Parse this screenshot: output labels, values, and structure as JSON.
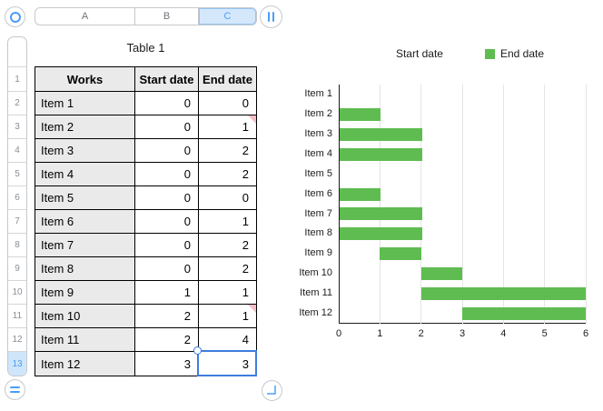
{
  "chrome": {
    "column_bar": {
      "letters": [
        "A",
        "B",
        "C"
      ],
      "active": "C"
    },
    "row_bar": {
      "numbers": [
        "1",
        "2",
        "3",
        "4",
        "5",
        "6",
        "7",
        "8",
        "9",
        "10",
        "11",
        "12",
        "13"
      ],
      "active": "13"
    }
  },
  "table": {
    "title": "Table 1",
    "headers": [
      "Works",
      "Start date",
      "End date"
    ],
    "rows": [
      {
        "works": "Item 1",
        "start": "0",
        "end": "0",
        "comment": false
      },
      {
        "works": "Item 2",
        "start": "0",
        "end": "1",
        "comment": true
      },
      {
        "works": "Item 3",
        "start": "0",
        "end": "2",
        "comment": false
      },
      {
        "works": "Item 4",
        "start": "0",
        "end": "2",
        "comment": false
      },
      {
        "works": "Item 5",
        "start": "0",
        "end": "0",
        "comment": false
      },
      {
        "works": "Item 6",
        "start": "0",
        "end": "1",
        "comment": false
      },
      {
        "works": "Item 7",
        "start": "0",
        "end": "2",
        "comment": false
      },
      {
        "works": "Item 8",
        "start": "0",
        "end": "2",
        "comment": false
      },
      {
        "works": "Item 9",
        "start": "1",
        "end": "1",
        "comment": false
      },
      {
        "works": "Item 10",
        "start": "2",
        "end": "1",
        "comment": true
      },
      {
        "works": "Item 11",
        "start": "2",
        "end": "4",
        "comment": false
      },
      {
        "works": "Item 12",
        "start": "3",
        "end": "3",
        "comment": false
      }
    ],
    "selected_cell": {
      "column": "C",
      "row": "13",
      "value": "3"
    }
  },
  "chart_data": {
    "type": "bar",
    "orientation": "horizontal",
    "stacked": true,
    "categories": [
      "Item 1",
      "Item 2",
      "Item 3",
      "Item 4",
      "Item 5",
      "Item 6",
      "Item 7",
      "Item 8",
      "Item 9",
      "Item 10",
      "Item 11",
      "Item 12"
    ],
    "series": [
      {
        "name": "Start date",
        "color": "#ffffff",
        "values": [
          0,
          0,
          0,
          0,
          0,
          0,
          0,
          0,
          1,
          2,
          2,
          3
        ]
      },
      {
        "name": "End date",
        "color": "#5fbc51",
        "values": [
          0,
          1,
          2,
          2,
          0,
          1,
          2,
          2,
          1,
          1,
          4,
          3
        ]
      }
    ],
    "xlim": [
      0,
      6
    ],
    "xticks": [
      "0",
      "1",
      "2",
      "3",
      "4",
      "5",
      "6"
    ],
    "grid": true,
    "legend_position": "top"
  },
  "colors": {
    "accent_blue": "#4a9df8",
    "selection_blue": "#3e7de0",
    "bar_green": "#5fbc51",
    "comment_flag_pink": "#f6bdc6",
    "header_cell_gray": "#eaeaea",
    "table_border": "#000000",
    "gridline_gray": "#e4e4e4",
    "axis_dark": "#1c1c1c"
  }
}
